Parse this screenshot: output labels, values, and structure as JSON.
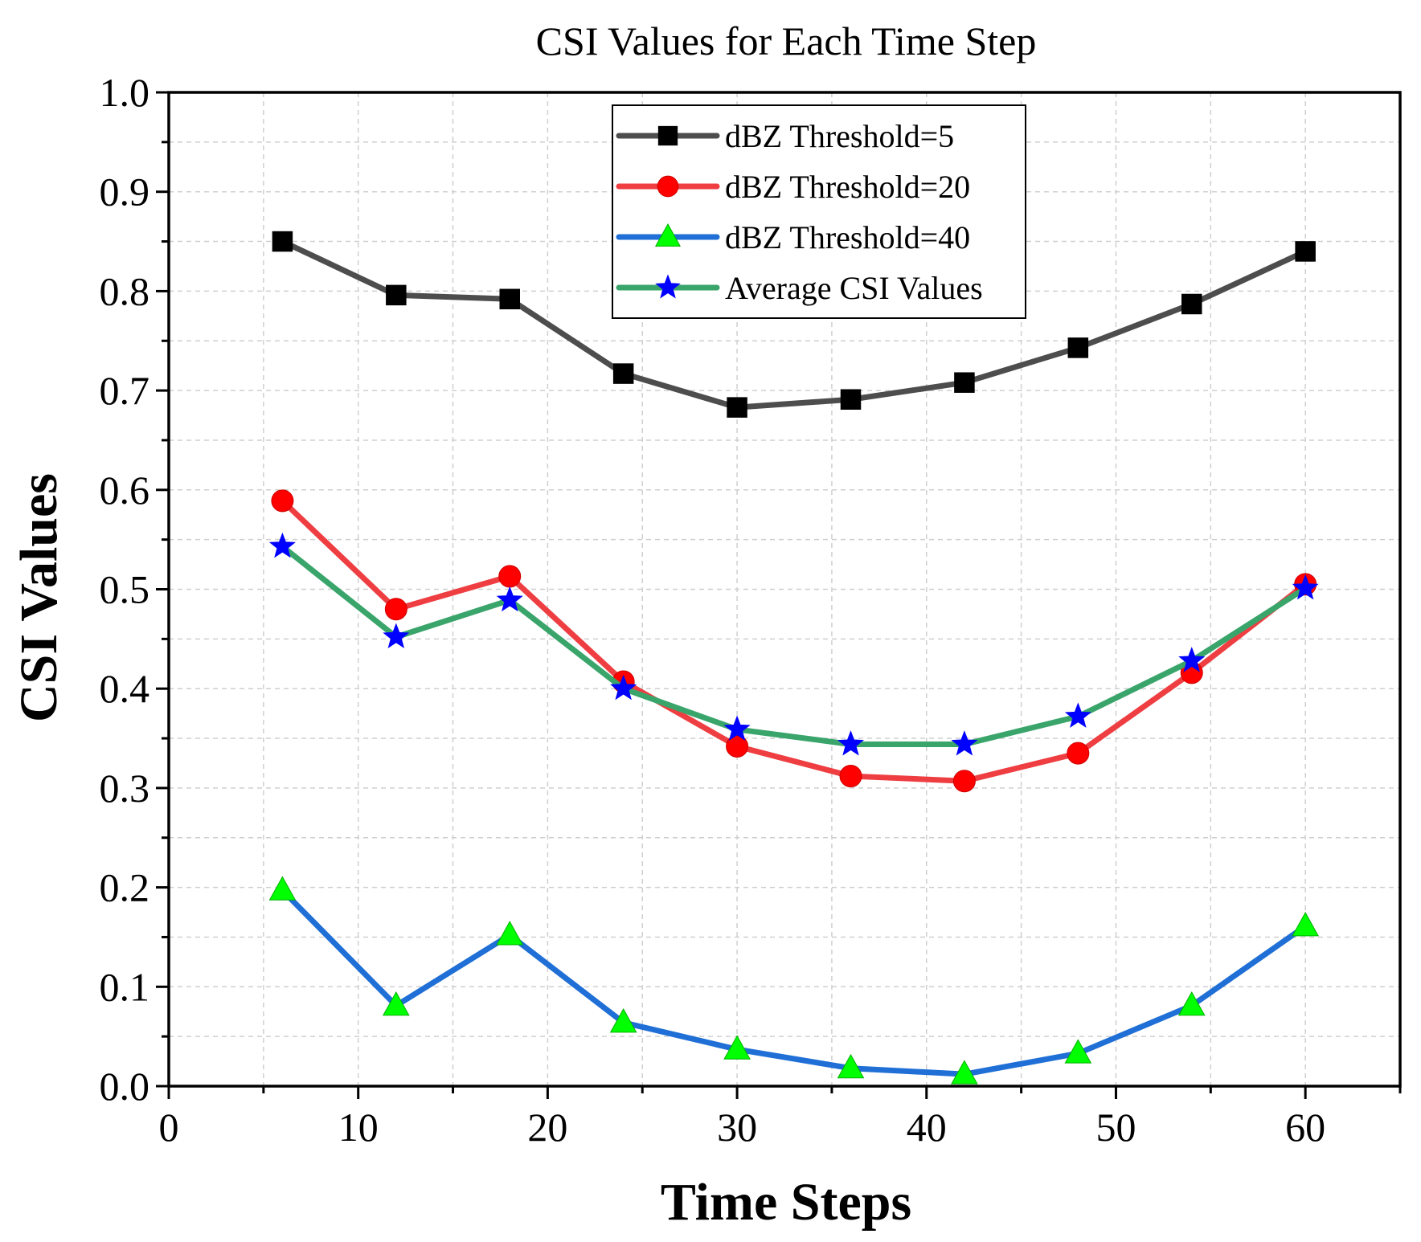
{
  "chart_data": {
    "type": "line",
    "title": "CSI Values for Each Time Step",
    "xlabel": "Time Steps",
    "ylabel": "CSI Values",
    "xlim": [
      0,
      65
    ],
    "ylim": [
      0.0,
      1.0
    ],
    "x_ticks": [
      0,
      10,
      20,
      30,
      40,
      50,
      60
    ],
    "x_tick_labels": [
      "0",
      "10",
      "20",
      "30",
      "40",
      "50",
      "60"
    ],
    "y_ticks": [
      0.0,
      0.1,
      0.2,
      0.3,
      0.4,
      0.5,
      0.6,
      0.7,
      0.8,
      0.9,
      1.0
    ],
    "y_tick_labels": [
      "0.0",
      "0.1",
      "0.2",
      "0.3",
      "0.4",
      "0.5",
      "0.6",
      "0.7",
      "0.8",
      "0.9",
      "1.0"
    ],
    "grid": true,
    "legend_position": "top-center",
    "x": [
      6,
      12,
      18,
      24,
      30,
      36,
      42,
      48,
      54,
      60
    ],
    "series": [
      {
        "name": "dBZ Threshold=5",
        "line_color": "#4d4d4d",
        "marker": "square",
        "marker_color": "#000000",
        "values": [
          0.85,
          0.796,
          0.792,
          0.717,
          0.683,
          0.691,
          0.708,
          0.743,
          0.787,
          0.84
        ]
      },
      {
        "name": "dBZ Threshold=20",
        "line_color": "#ef3e42",
        "marker": "circle",
        "marker_color": "#ff0000",
        "values": [
          0.589,
          0.48,
          0.513,
          0.407,
          0.342,
          0.312,
          0.307,
          0.335,
          0.416,
          0.505
        ]
      },
      {
        "name": "dBZ Threshold=40",
        "line_color": "#1f6fd6",
        "marker": "triangle",
        "marker_color": "#00ff00",
        "values": [
          0.197,
          0.081,
          0.152,
          0.064,
          0.037,
          0.018,
          0.012,
          0.033,
          0.081,
          0.161
        ]
      },
      {
        "name": "Average CSI Values",
        "line_color": "#3aa56b",
        "marker": "star",
        "marker_color": "#0000ff",
        "values": [
          0.543,
          0.452,
          0.489,
          0.4,
          0.359,
          0.344,
          0.344,
          0.372,
          0.428,
          0.501
        ]
      }
    ]
  }
}
